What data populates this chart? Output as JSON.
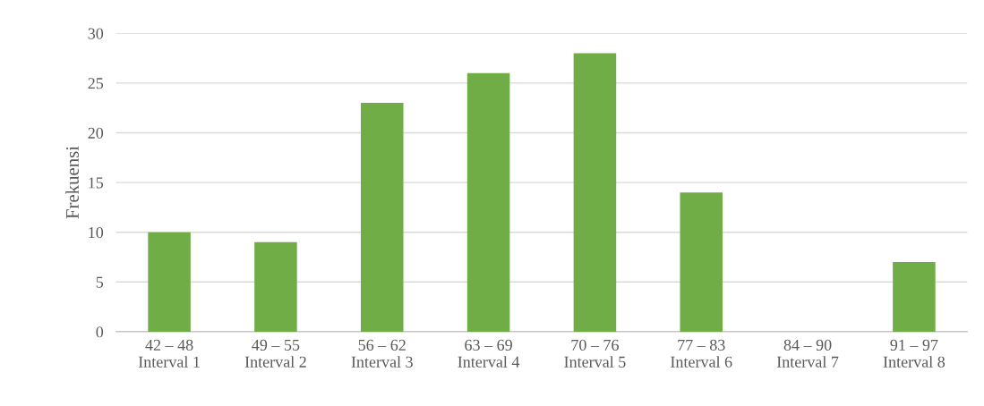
{
  "chart_data": {
    "type": "bar",
    "ylabel": "Frekuensi",
    "categories": [
      "42 – 48\nInterval 1",
      "49 – 55\nInterval 2",
      "56 – 62\nInterval 3",
      "63 – 69\nInterval 4",
      "70 – 76\nInterval 5",
      "77 – 83\nInterval 6",
      "84 – 90\nInterval 7",
      "91 – 97\nInterval 8"
    ],
    "values": [
      10,
      9,
      23,
      26,
      28,
      14,
      0,
      7
    ],
    "color": "#70ad47",
    "ylim": [
      0,
      30
    ],
    "yticks": [
      0,
      5,
      10,
      15,
      20,
      25,
      30
    ],
    "grid": "y",
    "legend": false
  }
}
